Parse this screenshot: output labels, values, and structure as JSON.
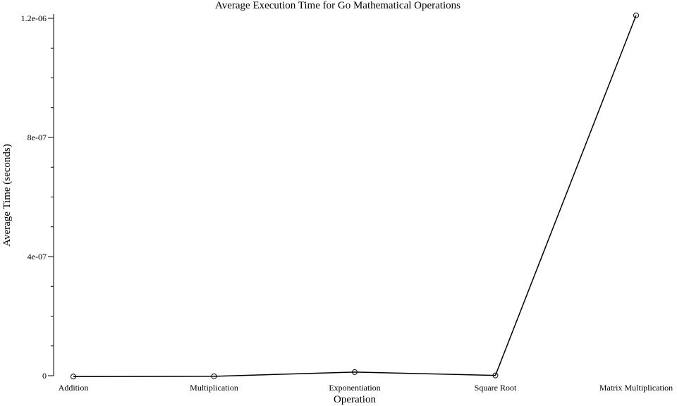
{
  "chart_data": {
    "type": "line",
    "title": "Average Execution Time for Go Mathematical Operations",
    "xlabel": "Operation",
    "ylabel": "Average Time (seconds)",
    "categories": [
      "Addition",
      "Multiplication",
      "Exponentiation",
      "Square Root",
      "Matrix Multiplication"
    ],
    "values": [
      -3e-09,
      -2e-09,
      1.2e-08,
      1e-09,
      1.21e-06
    ],
    "ylim": [
      -1.6e-08,
      1.23e-06
    ],
    "yticks": [
      {
        "value": 0,
        "label": "0"
      },
      {
        "value": 4e-07,
        "label": "4e-07"
      },
      {
        "value": 8e-07,
        "label": "8e-07"
      },
      {
        "value": 1.2e-06,
        "label": "1.2e-06"
      }
    ],
    "yminor_step": 1e-07,
    "grid": false,
    "legend": "none",
    "colors": {
      "line": "#000000",
      "marker": "#000000"
    }
  }
}
